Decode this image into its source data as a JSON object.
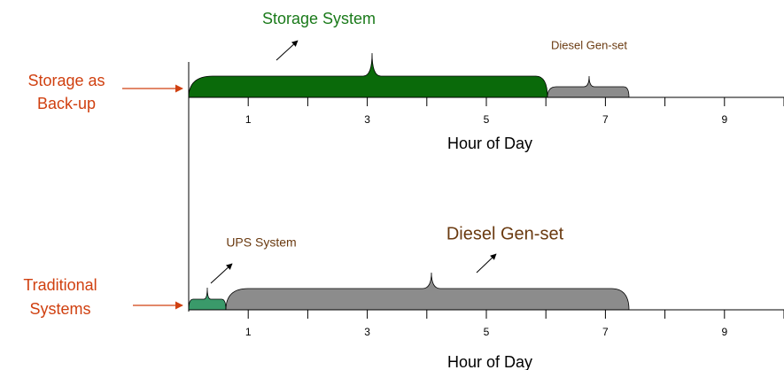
{
  "top": {
    "label_lines": [
      "Storage as",
      "Back-up"
    ],
    "segments": [
      {
        "label": "Storage System"
      },
      {
        "label": "Diesel Gen-set"
      }
    ],
    "tick_labels": [
      1,
      3,
      5,
      7,
      9
    ],
    "axis_title": "Hour of Day"
  },
  "bottom": {
    "label_lines": [
      "Traditional",
      "Systems"
    ],
    "segments": [
      {
        "label": "UPS System"
      },
      {
        "label": "Diesel Gen-set"
      }
    ],
    "tick_labels": [
      1,
      3,
      5,
      7,
      9
    ],
    "axis_title": "Hour of Day"
  }
}
